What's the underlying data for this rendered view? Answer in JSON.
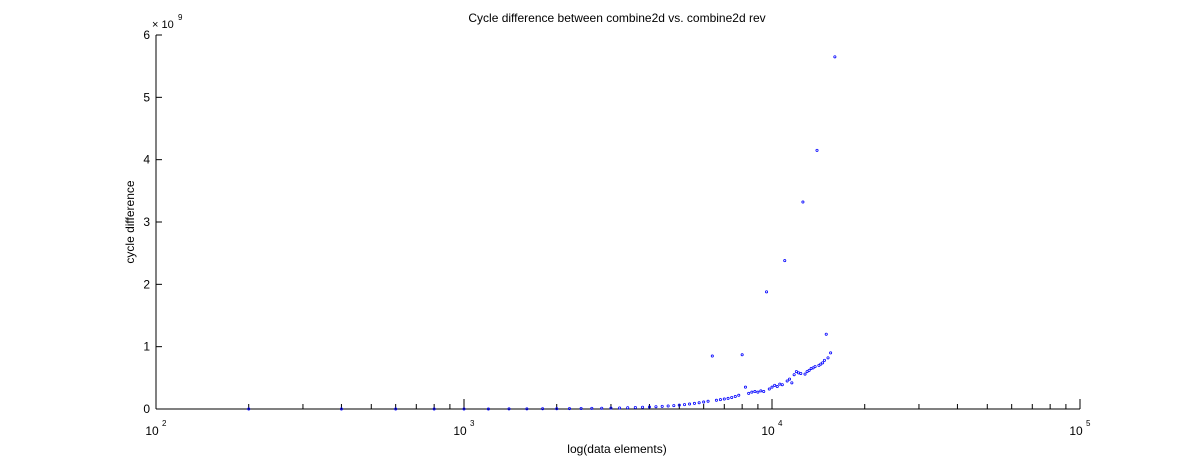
{
  "chart_data": {
    "type": "scatter",
    "title": "Cycle difference between combine2d vs. combine2d rev",
    "xlabel": "log(data elements)",
    "ylabel": "cycle difference",
    "xscale": "log",
    "xlim": [
      100,
      100000
    ],
    "ylim": [
      0,
      6000000000
    ],
    "y_multiplier_label": "× 10",
    "y_multiplier_exponent": "9",
    "x_ticks": [
      {
        "value": 100,
        "base": "10",
        "exp": "2"
      },
      {
        "value": 1000,
        "base": "10",
        "exp": "3"
      },
      {
        "value": 10000,
        "base": "10",
        "exp": "4"
      },
      {
        "value": 100000,
        "base": "10",
        "exp": "5"
      }
    ],
    "y_ticks": [
      {
        "value": 0,
        "label": "0"
      },
      {
        "value": 1000000000,
        "label": "1"
      },
      {
        "value": 2000000000,
        "label": "2"
      },
      {
        "value": 3000000000,
        "label": "3"
      },
      {
        "value": 4000000000,
        "label": "4"
      },
      {
        "value": 5000000000,
        "label": "5"
      },
      {
        "value": 6000000000,
        "label": "6"
      }
    ],
    "grid": false,
    "marker_color": "#0000ff",
    "series": [
      {
        "points": [
          [
            200,
            0
          ],
          [
            400,
            0
          ],
          [
            600,
            0
          ],
          [
            800,
            0
          ],
          [
            1000,
            0
          ],
          [
            1200,
            1000000
          ],
          [
            1400,
            2000000
          ],
          [
            1600,
            3000000
          ],
          [
            1800,
            4000000
          ],
          [
            2000,
            5000000
          ],
          [
            2200,
            6000000
          ],
          [
            2400,
            8000000
          ],
          [
            2600,
            10000000
          ],
          [
            2800,
            12000000
          ],
          [
            3000,
            14000000
          ],
          [
            3200,
            17000000
          ],
          [
            3400,
            20000000
          ],
          [
            3600,
            24000000
          ],
          [
            3800,
            28000000
          ],
          [
            4000,
            32000000
          ],
          [
            4200,
            37000000
          ],
          [
            4400,
            42000000
          ],
          [
            4600,
            48000000
          ],
          [
            4800,
            55000000
          ],
          [
            5000,
            62000000
          ],
          [
            5200,
            70000000
          ],
          [
            5400,
            80000000
          ],
          [
            5600,
            90000000
          ],
          [
            5800,
            100000000
          ],
          [
            6000,
            112000000
          ],
          [
            6200,
            125000000
          ],
          [
            6400,
            850000000
          ],
          [
            6600,
            140000000
          ],
          [
            6800,
            150000000
          ],
          [
            7000,
            160000000
          ],
          [
            7200,
            170000000
          ],
          [
            7400,
            185000000
          ],
          [
            7600,
            200000000
          ],
          [
            7800,
            220000000
          ],
          [
            8000,
            870000000
          ],
          [
            8200,
            350000000
          ],
          [
            8400,
            250000000
          ],
          [
            8600,
            270000000
          ],
          [
            8800,
            280000000
          ],
          [
            9000,
            270000000
          ],
          [
            9200,
            290000000
          ],
          [
            9400,
            280000000
          ],
          [
            9600,
            1880000000
          ],
          [
            9800,
            320000000
          ],
          [
            10000,
            350000000
          ],
          [
            10200,
            380000000
          ],
          [
            10400,
            360000000
          ],
          [
            10600,
            400000000
          ],
          [
            10800,
            390000000
          ],
          [
            11000,
            2380000000
          ],
          [
            11200,
            450000000
          ],
          [
            11400,
            480000000
          ],
          [
            11600,
            420000000
          ],
          [
            11800,
            550000000
          ],
          [
            12000,
            600000000
          ],
          [
            12200,
            580000000
          ],
          [
            12400,
            570000000
          ],
          [
            12600,
            3320000000
          ],
          [
            12800,
            560000000
          ],
          [
            13000,
            600000000
          ],
          [
            13200,
            620000000
          ],
          [
            13400,
            650000000
          ],
          [
            13600,
            660000000
          ],
          [
            13800,
            680000000
          ],
          [
            14000,
            4150000000
          ],
          [
            14200,
            700000000
          ],
          [
            14400,
            720000000
          ],
          [
            14600,
            740000000
          ],
          [
            14800,
            780000000
          ],
          [
            15000,
            1200000000
          ],
          [
            15200,
            820000000
          ],
          [
            15500,
            900000000
          ],
          [
            16000,
            5650000000
          ]
        ]
      }
    ]
  }
}
